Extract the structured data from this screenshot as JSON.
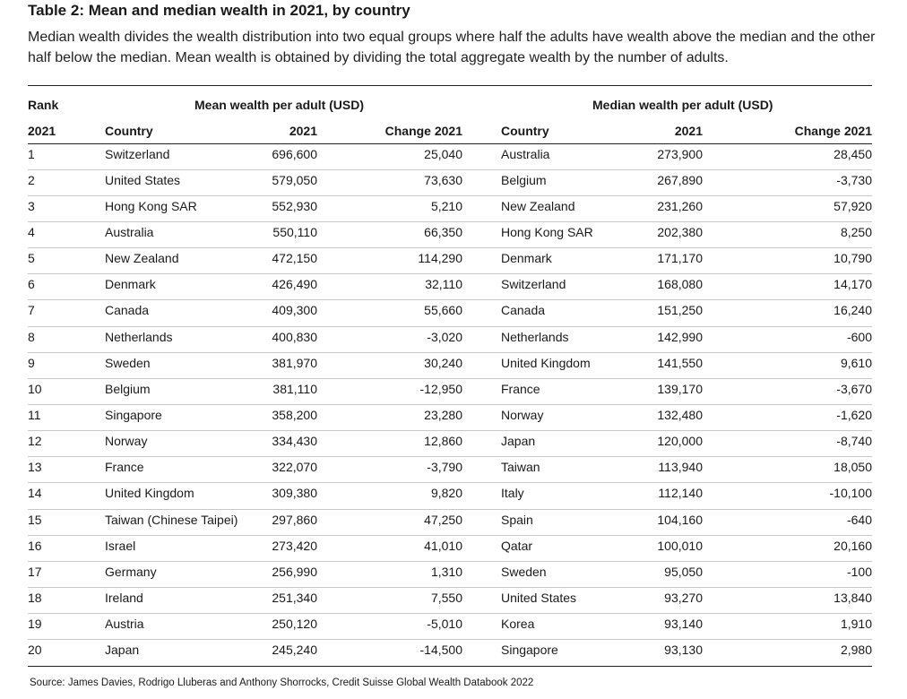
{
  "title": "Table 2: Mean and median wealth in 2021, by country",
  "description": "Median wealth divides the wealth distribution into two equal groups where half the adults have wealth above the median and the other half below the median. Mean wealth is obtained by dividing the total aggregate wealth by the number of adults.",
  "table": {
    "group_headers": [
      "Rank",
      "Mean wealth per adult (USD)",
      "Median wealth per adult (USD)"
    ],
    "columns": [
      "2021",
      "Country",
      "2021",
      "Change 2021",
      "Country",
      "2021",
      "Change 2021"
    ],
    "rows": [
      [
        "1",
        "Switzerland",
        "696,600",
        "25,040",
        "Australia",
        "273,900",
        "28,450"
      ],
      [
        "2",
        "United States",
        "579,050",
        "73,630",
        "Belgium",
        "267,890",
        "-3,730"
      ],
      [
        "3",
        "Hong Kong SAR",
        "552,930",
        "5,210",
        "New Zealand",
        "231,260",
        "57,920"
      ],
      [
        "4",
        "Australia",
        "550,110",
        "66,350",
        "Hong Kong SAR",
        "202,380",
        "8,250"
      ],
      [
        "5",
        "New Zealand",
        "472,150",
        "114,290",
        "Denmark",
        "171,170",
        "10,790"
      ],
      [
        "6",
        "Denmark",
        "426,490",
        "32,110",
        "Switzerland",
        "168,080",
        "14,170"
      ],
      [
        "7",
        "Canada",
        "409,300",
        "55,660",
        "Canada",
        "151,250",
        "16,240"
      ],
      [
        "8",
        "Netherlands",
        "400,830",
        "-3,020",
        "Netherlands",
        "142,990",
        "-600"
      ],
      [
        "9",
        "Sweden",
        "381,970",
        "30,240",
        "United Kingdom",
        "141,550",
        "9,610"
      ],
      [
        "10",
        "Belgium",
        "381,110",
        "-12,950",
        "France",
        "139,170",
        "-3,670"
      ],
      [
        "11",
        "Singapore",
        "358,200",
        "23,280",
        "Norway",
        "132,480",
        "-1,620"
      ],
      [
        "12",
        "Norway",
        "334,430",
        "12,860",
        "Japan",
        "120,000",
        "-8,740"
      ],
      [
        "13",
        "France",
        "322,070",
        "-3,790",
        "Taiwan",
        "113,940",
        "18,050"
      ],
      [
        "14",
        "United Kingdom",
        "309,380",
        "9,820",
        "Italy",
        "112,140",
        "-10,100"
      ],
      [
        "15",
        "Taiwan (Chinese Taipei)",
        "297,860",
        "47,250",
        "Spain",
        "104,160",
        "-640"
      ],
      [
        "16",
        "Israel",
        "273,420",
        "41,010",
        "Qatar",
        "100,010",
        "20,160"
      ],
      [
        "17",
        "Germany",
        "256,990",
        "1,310",
        "Sweden",
        "95,050",
        "-100"
      ],
      [
        "18",
        "Ireland",
        "251,340",
        "7,550",
        "United States",
        "93,270",
        "13,840"
      ],
      [
        "19",
        "Austria",
        "250,120",
        "-5,010",
        "Korea",
        "93,140",
        "1,910"
      ],
      [
        "20",
        "Japan",
        "245,240",
        "-14,500",
        "Singapore",
        "93,130",
        "2,980"
      ]
    ]
  },
  "source": "Source: James Davies, Rodrigo Lluberas and Anthony Shorrocks, Credit Suisse Global Wealth Databook 2022"
}
